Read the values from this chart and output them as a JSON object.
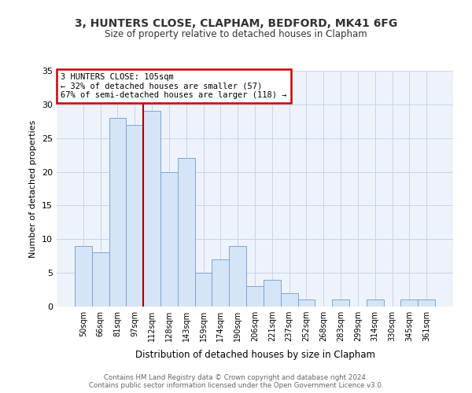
{
  "title1": "3, HUNTERS CLOSE, CLAPHAM, BEDFORD, MK41 6FG",
  "title2": "Size of property relative to detached houses in Clapham",
  "xlabel": "Distribution of detached houses by size in Clapham",
  "ylabel": "Number of detached properties",
  "bar_labels": [
    "50sqm",
    "66sqm",
    "81sqm",
    "97sqm",
    "112sqm",
    "128sqm",
    "143sqm",
    "159sqm",
    "174sqm",
    "190sqm",
    "206sqm",
    "221sqm",
    "237sqm",
    "252sqm",
    "268sqm",
    "283sqm",
    "299sqm",
    "314sqm",
    "330sqm",
    "345sqm",
    "361sqm"
  ],
  "bar_values": [
    9,
    8,
    28,
    27,
    29,
    20,
    22,
    5,
    7,
    9,
    3,
    4,
    2,
    1,
    0,
    1,
    0,
    1,
    0,
    1,
    1
  ],
  "bar_color": "#d6e4f7",
  "bar_edge_color": "#7aa6d4",
  "vline_color": "#aa0000",
  "annotation_text": "3 HUNTERS CLOSE: 105sqm\n← 32% of detached houses are smaller (57)\n67% of semi-detached houses are larger (118) →",
  "annotation_box_color": "#ffffff",
  "annotation_box_edge": "#cc0000",
  "ylim": [
    0,
    35
  ],
  "yticks": [
    0,
    5,
    10,
    15,
    20,
    25,
    30,
    35
  ],
  "footer1": "Contains HM Land Registry data © Crown copyright and database right 2024.",
  "footer2": "Contains public sector information licensed under the Open Government Licence v3.0.",
  "bg_color": "#ffffff",
  "plot_bg_color": "#eef3fb",
  "grid_color": "#c8d4e8"
}
